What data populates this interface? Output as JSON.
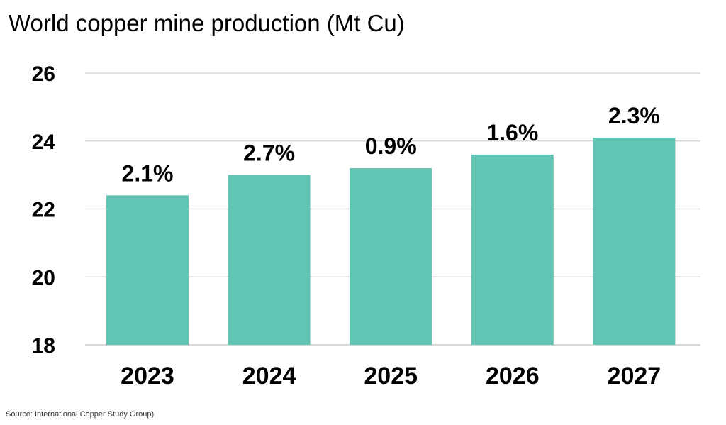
{
  "title": "World copper mine production (Mt Cu)",
  "source": "Source: International Copper Study Group)",
  "chart_data": {
    "type": "bar",
    "title": "World copper mine production (Mt Cu)",
    "xlabel": "",
    "ylabel": "",
    "categories": [
      "2023",
      "2024",
      "2025",
      "2026",
      "2027"
    ],
    "values": [
      22.4,
      23.0,
      23.2,
      23.6,
      24.1
    ],
    "data_labels": [
      "2.1%",
      "2.7%",
      "0.9%",
      "1.6%",
      "2.3%"
    ],
    "ylim": [
      18,
      26
    ],
    "yticks": [
      18,
      20,
      22,
      24,
      26
    ],
    "grid": true,
    "legend": "none",
    "bar_color": "#62c4b3",
    "grid_color": "#d9d9d9"
  }
}
